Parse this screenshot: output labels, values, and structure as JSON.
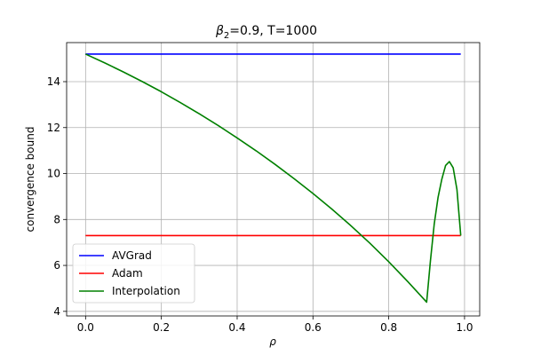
{
  "chart_data": {
    "type": "line",
    "title": "β2=0.9, T=1000",
    "title_base": "β",
    "title_sub": "2",
    "title_rest": "=0.9, T=1000",
    "xlabel": "ρ",
    "ylabel": "convergence bound",
    "xlim": [
      -0.05,
      1.04
    ],
    "ylim": [
      3.8,
      15.7
    ],
    "xticks": [
      0.0,
      0.2,
      0.4,
      0.6,
      0.8,
      1.0
    ],
    "xtick_labels": [
      "0.0",
      "0.2",
      "0.4",
      "0.6",
      "0.8",
      "1.0"
    ],
    "yticks": [
      4,
      6,
      8,
      10,
      12,
      14
    ],
    "ytick_labels": [
      "4",
      "6",
      "8",
      "10",
      "12",
      "14"
    ],
    "grid": true,
    "legend_position": "lower-left",
    "series": [
      {
        "name": "AVGrad",
        "color": "#0000ff",
        "x": [
          0.0,
          0.99
        ],
        "y": [
          15.2,
          15.2
        ]
      },
      {
        "name": "Adam",
        "color": "#ff0000",
        "x": [
          0.0,
          0.99
        ],
        "y": [
          7.3,
          7.3
        ]
      },
      {
        "name": "Interpolation",
        "color": "#008000",
        "x": [
          0.0,
          0.05,
          0.1,
          0.15,
          0.2,
          0.25,
          0.3,
          0.35,
          0.4,
          0.45,
          0.5,
          0.55,
          0.6,
          0.65,
          0.7,
          0.75,
          0.8,
          0.85,
          0.9,
          0.91,
          0.92,
          0.93,
          0.94,
          0.95,
          0.96,
          0.97,
          0.98,
          0.99
        ],
        "y": [
          15.2,
          14.82,
          14.42,
          14.0,
          13.56,
          13.09,
          12.6,
          12.09,
          11.55,
          10.99,
          10.4,
          9.78,
          9.13,
          8.45,
          7.73,
          6.97,
          6.16,
          5.3,
          4.4,
          6.2,
          7.8,
          8.95,
          9.75,
          10.35,
          10.52,
          10.25,
          9.3,
          7.3
        ]
      }
    ]
  }
}
